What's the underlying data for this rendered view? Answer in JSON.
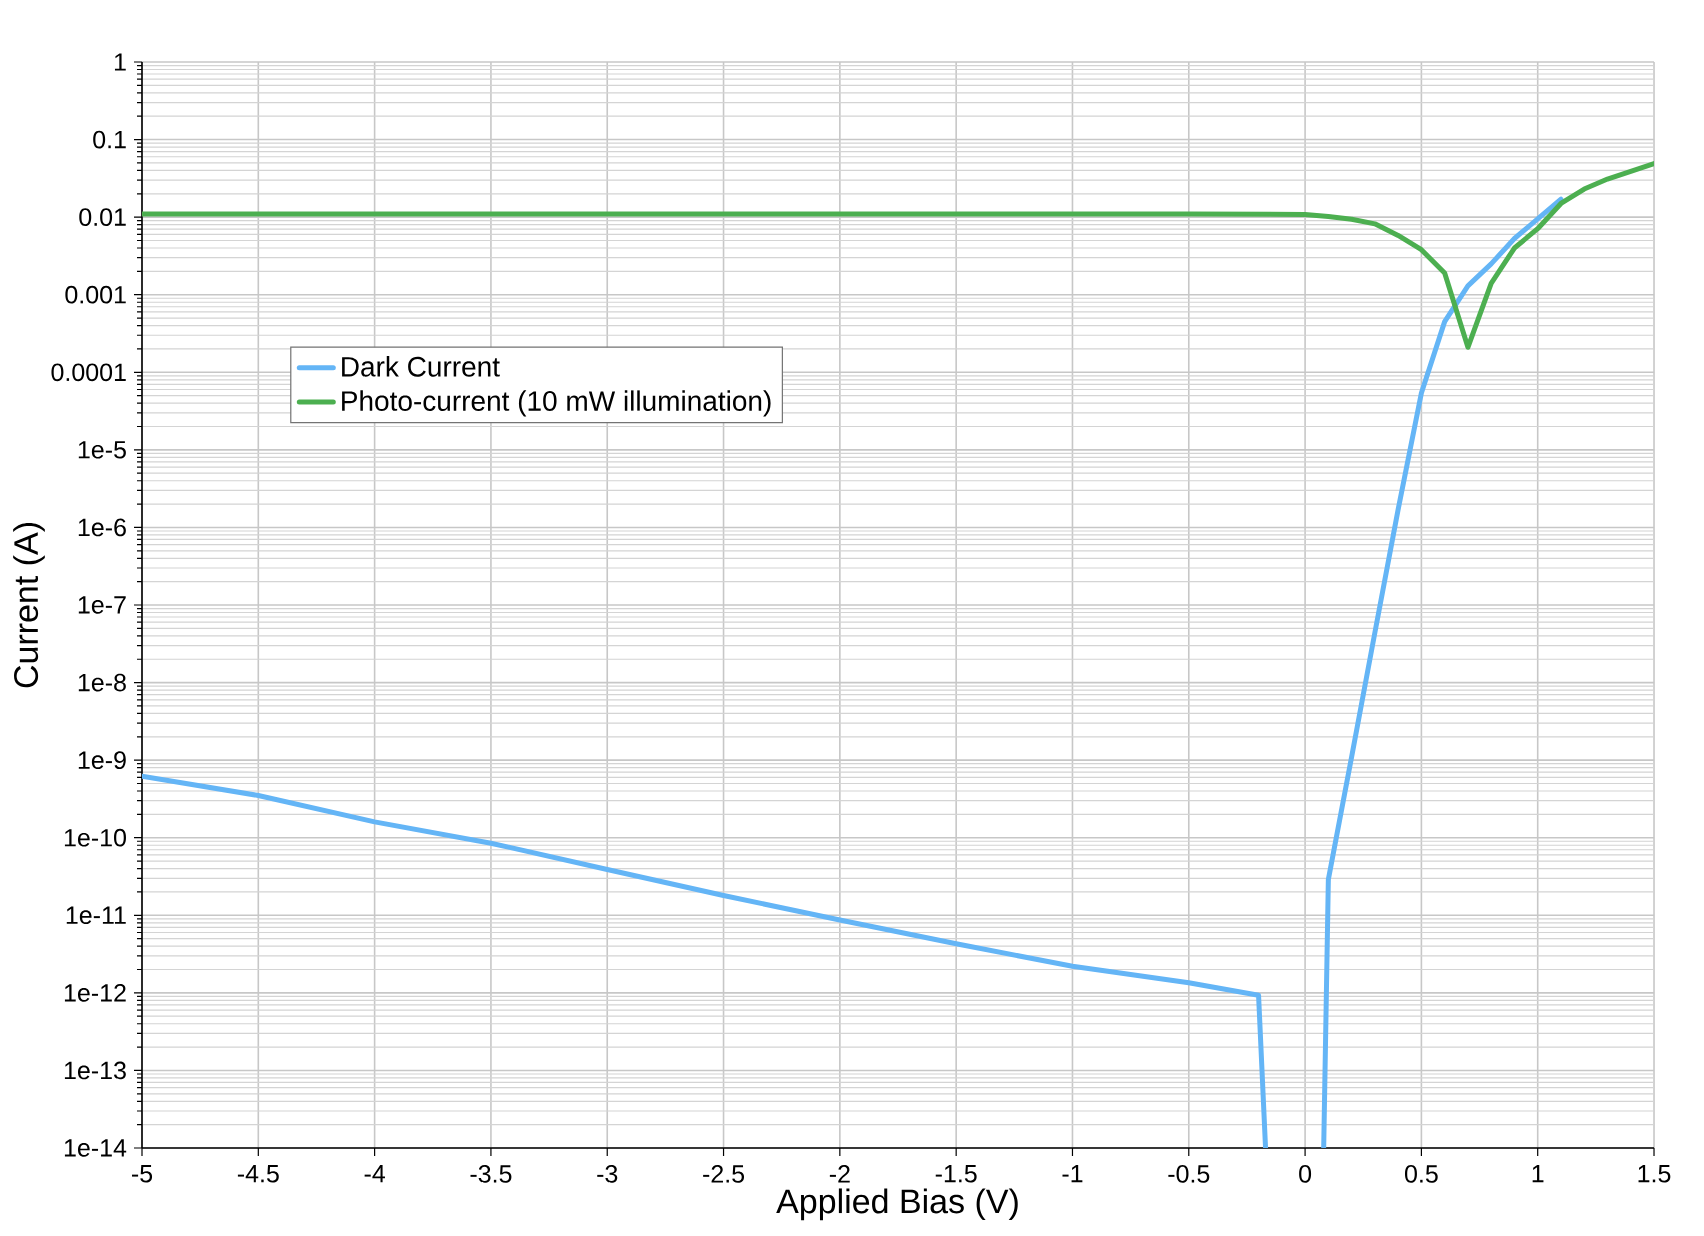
{
  "chart_data": {
    "type": "line",
    "xlabel": "Applied Bias (V)",
    "ylabel": "Current (A)",
    "log": "y",
    "xlim": [
      -5,
      1.5
    ],
    "ylim": [
      1e-14,
      1
    ],
    "xticks": [
      -5,
      -4.5,
      -4,
      -3.5,
      -3,
      -2.5,
      -2,
      -1.5,
      -1,
      -0.5,
      0,
      0.5,
      1,
      1.5
    ],
    "yticks": [
      1,
      0.1,
      0.01,
      0.001,
      0.0001,
      {
        "value": 1e-05,
        "label": "1e-5"
      },
      {
        "value": 1e-06,
        "label": "1e-6"
      },
      {
        "value": 1e-07,
        "label": "1e-7"
      },
      {
        "value": 1e-08,
        "label": "1e-8"
      },
      {
        "value": 1e-09,
        "label": "1e-9"
      },
      {
        "value": 1e-10,
        "label": "1e-10"
      },
      {
        "value": 1e-11,
        "label": "1e-11"
      },
      {
        "value": 1e-12,
        "label": "1e-12"
      },
      {
        "value": 1e-13,
        "label": "1e-13"
      },
      {
        "value": 1e-14,
        "label": "1e-14"
      }
    ],
    "grid": true,
    "legend": "top left",
    "marker": "none",
    "line_style": "solid",
    "series": [
      {
        "name": "Dark Current",
        "color": "#64b5f6",
        "x": [
          -5,
          -4.5,
          -4,
          -3.5,
          -3,
          -2.5,
          -2,
          -1.5,
          -1,
          -0.5,
          -0.2,
          -0.17,
          0,
          0.08,
          0.1,
          0.2,
          0.3,
          0.4,
          0.5,
          0.6,
          0.7,
          0.8,
          0.9,
          1.0,
          1.1
        ],
        "values": [
          6.2e-10,
          3.5e-10,
          1.6e-10,
          8.5e-11,
          3.9e-11,
          1.8e-11,
          8.7e-12,
          4.3e-12,
          2.2e-12,
          1.35e-12,
          9.3e-13,
          1e-14,
          null,
          1e-14,
          2.9e-11,
          1.1e-09,
          4.4e-08,
          1.7e-06,
          5.4e-05,
          0.00045,
          0.0013,
          0.0025,
          0.0053,
          0.0095,
          0.017
        ]
      },
      {
        "name": "Photo-current (10 mW illumination)",
        "color": "#4caf50",
        "x": [
          -5,
          -2.5,
          -1,
          -0.5,
          0,
          0.1,
          0.2,
          0.3,
          0.4,
          0.5,
          0.6,
          0.7,
          0.8,
          0.9,
          1.0,
          1.1,
          1.2,
          1.3,
          1.4,
          1.5
        ],
        "values": [
          0.011,
          0.011,
          0.011,
          0.011,
          0.0108,
          0.0102,
          0.0094,
          0.0082,
          0.0058,
          0.0038,
          0.0019,
          0.00021,
          0.0014,
          0.004,
          0.0071,
          0.015,
          0.023,
          0.031,
          0.039,
          0.049
        ]
      }
    ]
  }
}
